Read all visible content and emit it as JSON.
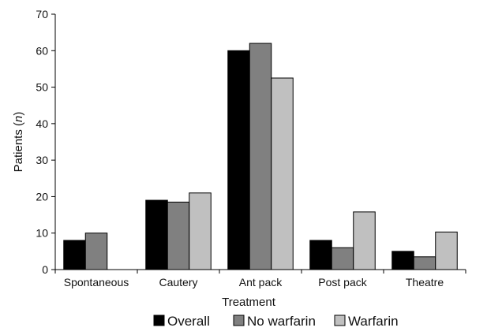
{
  "chart_data": {
    "type": "bar",
    "categories": [
      "Spontaneous",
      "Cautery",
      "Ant pack",
      "Post pack",
      "Theatre"
    ],
    "series": [
      {
        "name": "Overall",
        "values": [
          8,
          19,
          60,
          8,
          5
        ],
        "color": "#000000"
      },
      {
        "name": "No warfarin",
        "values": [
          10,
          18.5,
          62,
          6,
          3.5
        ],
        "color": "#808080"
      },
      {
        "name": "Warfarin",
        "values": [
          0,
          21,
          52.5,
          15.8,
          10.3
        ],
        "color": "#c0c0c0"
      }
    ],
    "xlabel": "Treatment",
    "ylabel_main": "Patients (",
    "ylabel_italic": "n",
    "ylabel_end": ")",
    "ylim": [
      0,
      70
    ],
    "yticks": [
      0,
      10,
      20,
      30,
      40,
      50,
      60,
      70
    ],
    "grid": false,
    "legend_position": "bottom"
  }
}
